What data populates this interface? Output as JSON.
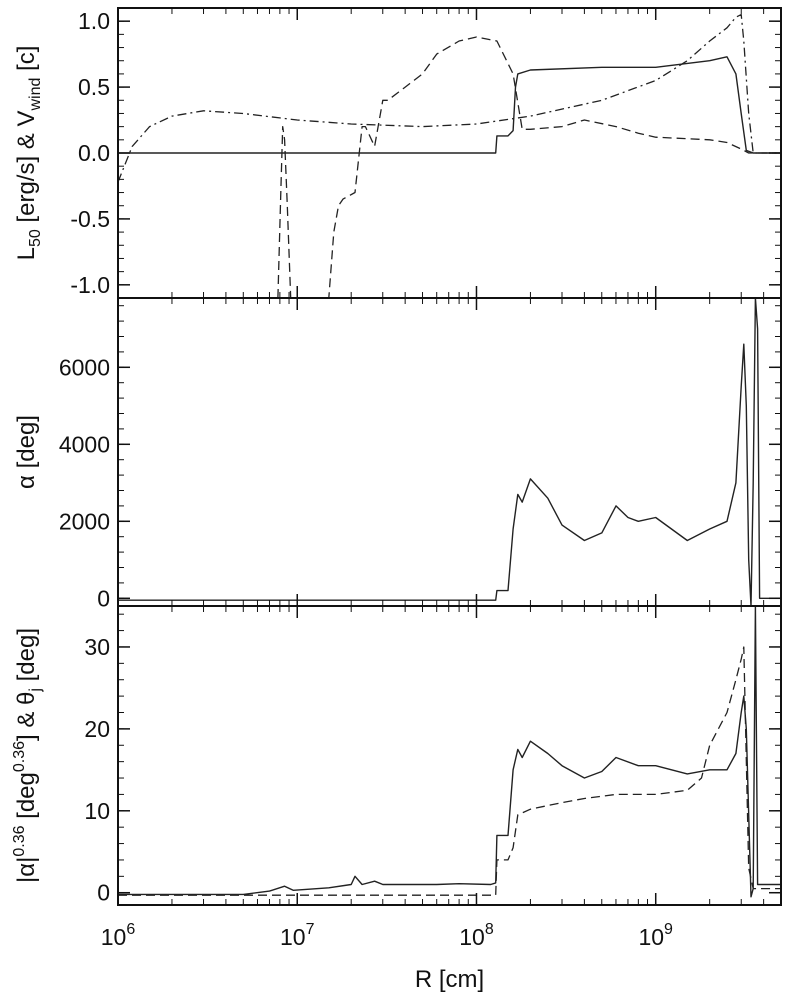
{
  "chart_data": [
    {
      "type": "line",
      "panel": "top",
      "ylabel": {
        "prefix": "L",
        "sub": "50",
        "mid": " [erg/s]  &  V",
        "sub2": "wind",
        "suffix": " [c]"
      },
      "xscale": "log",
      "xlim": [
        1000000.0,
        5000000000.0
      ],
      "ylim": [
        -1.1,
        1.1
      ],
      "yticks": [
        -1.0,
        -0.5,
        0.0,
        0.5,
        1.0
      ],
      "ytick_labels": [
        "-1.0",
        "-0.5",
        "0.0",
        "0.5",
        "1.0"
      ],
      "series": [
        {
          "style": "solid",
          "x": [
            1000000.0,
            120000000.0,
            128000000.0,
            130000000.0,
            150000000.0,
            160000000.0,
            165000000.0,
            170000000.0,
            200000000.0,
            500000000.0,
            1000000000.0,
            1500000000.0,
            2000000000.0,
            2500000000.0,
            2800000000.0,
            3000000000.0,
            3200000000.0,
            3500000000.0,
            5000000000.0
          ],
          "y": [
            0,
            0,
            0,
            0.13,
            0.13,
            0.17,
            0.5,
            0.6,
            0.63,
            0.65,
            0.65,
            0.68,
            0.7,
            0.73,
            0.6,
            0.3,
            0.02,
            0.0,
            0.0
          ]
        },
        {
          "style": "dashed",
          "x": [
            7800000.0,
            8100000.0,
            8300000.0,
            8500000.0,
            8800000.0,
            9200000.0,
            15000000.0,
            16000000.0,
            17000000.0,
            18000000.0,
            21000000.0,
            23000000.0,
            24000000.0,
            27000000.0,
            30000000.0,
            32000000.0,
            40000000.0,
            50000000.0,
            60000000.0,
            80000000.0,
            100000000.0,
            130000000.0,
            160000000.0,
            180000000.0,
            200000000.0,
            300000000.0,
            400000000.0,
            600000000.0,
            800000000.0,
            1000000000.0,
            2000000000.0,
            2500000000.0,
            3000000000.0,
            3300000000.0,
            3500000000.0,
            5000000000.0
          ],
          "y": [
            -1.1,
            -0.3,
            0.2,
            0.1,
            -0.4,
            -1.1,
            -1.1,
            -0.6,
            -0.4,
            -0.35,
            -0.3,
            0.2,
            0.2,
            0.05,
            0.4,
            0.4,
            0.5,
            0.6,
            0.75,
            0.85,
            0.88,
            0.85,
            0.6,
            0.18,
            0.18,
            0.2,
            0.25,
            0.2,
            0.15,
            0.12,
            0.1,
            0.08,
            0.03,
            0.0,
            0.0,
            0.0
          ]
        },
        {
          "style": "dashdot",
          "x": [
            1000000.0,
            1200000.0,
            1500000.0,
            2000000.0,
            3000000.0,
            5000000.0,
            10000000.0,
            20000000.0,
            50000000.0,
            100000000.0,
            200000000.0,
            500000000.0,
            1000000000.0,
            1500000000.0,
            2000000000.0,
            2500000000.0,
            2800000000.0,
            3000000000.0,
            3100000000.0,
            3300000000.0,
            3500000000.0,
            5000000000.0
          ],
          "y": [
            -0.22,
            0.05,
            0.2,
            0.28,
            0.32,
            0.3,
            0.25,
            0.22,
            0.2,
            0.22,
            0.28,
            0.4,
            0.55,
            0.7,
            0.85,
            0.95,
            1.03,
            1.05,
            0.85,
            0.3,
            0.0,
            0.0
          ]
        }
      ]
    },
    {
      "type": "line",
      "panel": "middle",
      "ylabel": "α [deg]",
      "xscale": "log",
      "xlim": [
        1000000.0,
        5000000000.0
      ],
      "ylim": [
        -200,
        7800
      ],
      "yticks": [
        0,
        2000,
        4000,
        6000
      ],
      "ytick_labels": [
        "0",
        "2000",
        "4000",
        "6000"
      ],
      "series": [
        {
          "style": "solid",
          "x": [
            1000000.0,
            120000000.0,
            128000000.0,
            130000000.0,
            150000000.0,
            160000000.0,
            170000000.0,
            180000000.0,
            200000000.0,
            250000000.0,
            300000000.0,
            400000000.0,
            500000000.0,
            600000000.0,
            700000000.0,
            800000000.0,
            1000000000.0,
            1500000000.0,
            2000000000.0,
            2500000000.0,
            2800000000.0,
            3000000000.0,
            3100000000.0,
            3200000000.0,
            3300000000.0,
            3400000000.0,
            3500000000.0,
            3600000000.0,
            3700000000.0,
            3800000000.0,
            5000000000.0
          ],
          "y": [
            -50,
            -50,
            -50,
            200,
            200,
            1800,
            2700,
            2500,
            3100,
            2600,
            1900,
            1500,
            1700,
            2400,
            2100,
            2000,
            2100,
            1500,
            1800,
            2000,
            3000,
            5500,
            6600,
            5000,
            1000,
            -200,
            3000,
            7800,
            7000,
            0,
            0
          ]
        }
      ]
    },
    {
      "type": "line",
      "panel": "bottom",
      "xlabel": "R [cm]",
      "ylabel": "|α|^0.36 [deg^0.36]  &  θj [deg]",
      "xscale": "log",
      "xlim": [
        1000000.0,
        5000000000.0
      ],
      "ylim": [
        -1.5,
        35
      ],
      "yticks": [
        0,
        10,
        20,
        30
      ],
      "ytick_labels": [
        "0",
        "10",
        "20",
        "30"
      ],
      "xticks": [
        1000000.0,
        10000000.0,
        100000000.0,
        1000000000.0
      ],
      "xtick_labels": [
        {
          "base": "10",
          "exp": "6"
        },
        {
          "base": "10",
          "exp": "7"
        },
        {
          "base": "10",
          "exp": "8"
        },
        {
          "base": "10",
          "exp": "9"
        }
      ],
      "series": [
        {
          "style": "solid",
          "x": [
            1000000.0,
            5000000.0,
            7000000.0,
            8500000.0,
            9500000.0,
            15000000.0,
            20000000.0,
            21000000.0,
            23000000.0,
            27000000.0,
            30000000.0,
            40000000.0,
            60000000.0,
            80000000.0,
            120000000.0,
            128000000.0,
            130000000.0,
            150000000.0,
            160000000.0,
            170000000.0,
            180000000.0,
            200000000.0,
            250000000.0,
            300000000.0,
            400000000.0,
            500000000.0,
            600000000.0,
            800000000.0,
            1000000000.0,
            1500000000.0,
            2000000000.0,
            2500000000.0,
            2800000000.0,
            3000000000.0,
            3100000000.0,
            3200000000.0,
            3400000000.0,
            3500000000.0,
            3600000000.0,
            3700000000.0,
            5000000000.0
          ],
          "y": [
            -0.2,
            -0.2,
            0.2,
            0.8,
            0.3,
            0.6,
            1.0,
            2.0,
            1.0,
            1.4,
            1.0,
            1.0,
            1.0,
            1.1,
            1.0,
            1.2,
            7.0,
            7.0,
            15.0,
            17.5,
            16.5,
            18.5,
            17.0,
            15.5,
            14.0,
            14.8,
            16.5,
            15.5,
            15.5,
            14.5,
            15.0,
            15.0,
            17.0,
            22.0,
            24.0,
            20.0,
            -0.5,
            0.5,
            35.0,
            1.0,
            1.0
          ]
        },
        {
          "style": "dashed",
          "x": [
            1000000.0,
            5000000.0,
            10000000.0,
            20000000.0,
            100000000.0,
            128000000.0,
            130000000.0,
            150000000.0,
            160000000.0,
            170000000.0,
            200000000.0,
            300000000.0,
            400000000.0,
            600000000.0,
            800000000.0,
            1000000000.0,
            1500000000.0,
            1800000000.0,
            2000000000.0,
            2500000000.0,
            2800000000.0,
            3000000000.0,
            3100000000.0,
            3300000000.0,
            3500000000.0,
            5000000000.0
          ],
          "y": [
            -0.3,
            -0.3,
            -0.3,
            -0.3,
            -0.3,
            -0.3,
            4.0,
            4.0,
            5.5,
            9.5,
            10.2,
            11.0,
            11.5,
            12.0,
            12.0,
            12.0,
            12.5,
            14.0,
            18.0,
            22.0,
            26.0,
            28.5,
            30.0,
            3.0,
            0.5,
            0.5
          ]
        }
      ]
    }
  ]
}
